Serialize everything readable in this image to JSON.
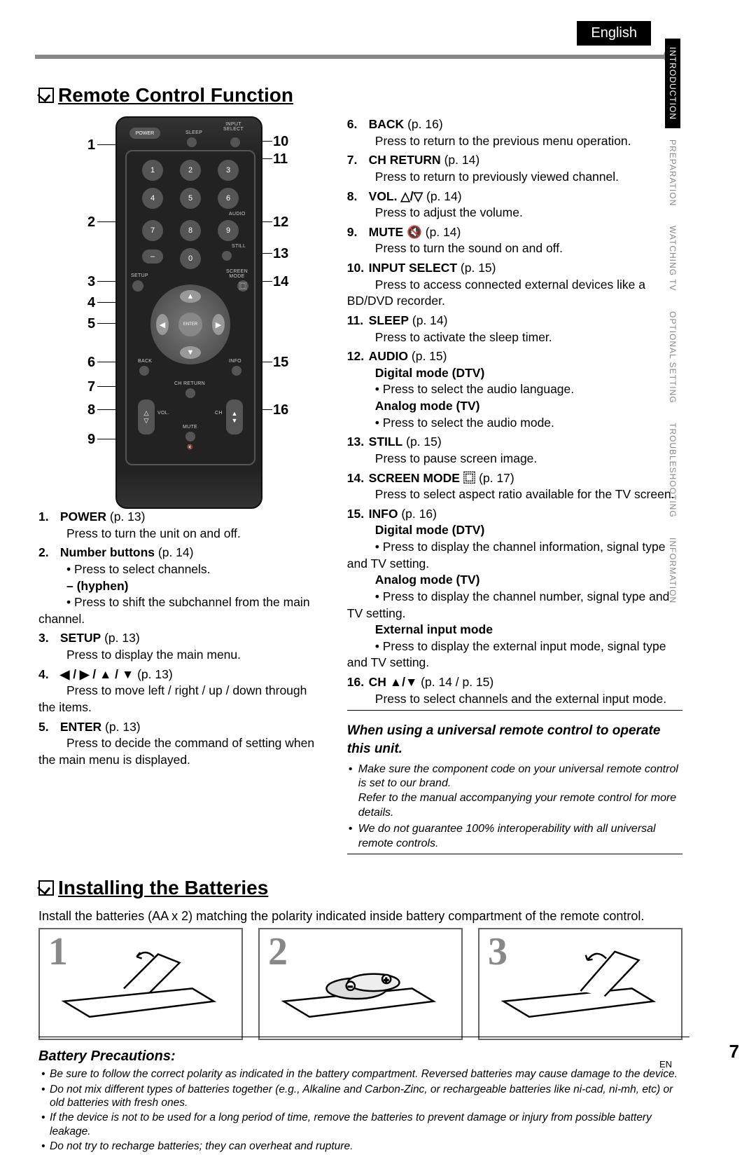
{
  "header": {
    "language": "English"
  },
  "side_tabs": [
    "INTRODUCTION",
    "PREPARATION",
    "WATCHING TV",
    "OPTIONAL SETTING",
    "TROUBLESHOOTING",
    "INFORMATION"
  ],
  "remote": {
    "title": "Remote Control Function",
    "left_list": [
      {
        "n": "1.",
        "b": "POWER",
        "pg": "(p. 13)",
        "desc": "Press to turn the unit on and off."
      },
      {
        "n": "2.",
        "b": "Number buttons",
        "pg": "(p. 14)",
        "desc": "• Press to select channels.",
        "sub": "– (hyphen)",
        "subdesc": "• Press to shift the subchannel from the main channel."
      },
      {
        "n": "3.",
        "b": "SETUP",
        "pg": "(p. 13)",
        "desc": "Press to display the main menu."
      },
      {
        "n": "4.",
        "b": "◀ / ▶ / ▲ / ▼",
        "pg": "(p. 13)",
        "desc": "Press to move left / right / up / down through the items."
      },
      {
        "n": "5.",
        "b": "ENTER",
        "pg": "(p. 13)",
        "desc": "Press to decide the command of setting when the main menu is displayed."
      }
    ],
    "right_list": [
      {
        "n": "6.",
        "b": "BACK",
        "pg": "(p. 16)",
        "desc": "Press to return to the previous menu operation."
      },
      {
        "n": "7.",
        "b": "CH RETURN",
        "pg": "(p. 14)",
        "desc": "Press to return to previously viewed channel."
      },
      {
        "n": "8.",
        "b": "VOL. △/▽",
        "pg": "(p. 14)",
        "desc": "Press to adjust the volume."
      },
      {
        "n": "9.",
        "b": "MUTE 🔇",
        "pg": "(p. 14)",
        "desc": "Press to turn the sound on and off."
      },
      {
        "n": "10.",
        "b": "INPUT SELECT",
        "pg": "(p. 15)",
        "desc": "Press to access connected external devices like a BD/DVD recorder."
      },
      {
        "n": "11.",
        "b": "SLEEP",
        "pg": "(p. 14)",
        "desc": "Press to activate the sleep timer."
      },
      {
        "n": "12.",
        "b": "AUDIO",
        "pg": "(p. 15)",
        "sub1": "Digital mode (DTV)",
        "sd1": "• Press to select the audio language.",
        "sub2": "Analog mode (TV)",
        "sd2": "• Press to select the audio mode."
      },
      {
        "n": "13.",
        "b": "STILL",
        "pg": "(p. 15)",
        "desc": "Press to pause screen image."
      },
      {
        "n": "14.",
        "b": "SCREEN MODE ⿴",
        "pg": "(p. 17)",
        "desc": "Press to select aspect ratio available for the TV screen."
      },
      {
        "n": "15.",
        "b": "INFO",
        "pg": "(p. 16)",
        "sub1": "Digital mode (DTV)",
        "sd1": "• Press to display the channel information, signal type and TV setting.",
        "sub2": "Analog mode (TV)",
        "sd2": "• Press to display the channel number, signal type and TV setting.",
        "sub3": "External input mode",
        "sd3": "• Press to display the external input mode, signal type and TV setting."
      },
      {
        "n": "16.",
        "b": "CH ▲/▼",
        "pg": "(p. 14 / p. 15)",
        "desc": "Press to select channels and the external input mode."
      }
    ],
    "callout": {
      "title": "When using a universal remote control to operate this unit.",
      "items": [
        "Make sure the component code on your universal remote control is set to our brand.\nRefer to the manual accompanying your remote control for more details.",
        "We do not guarantee 100% interoperability with all universal remote controls."
      ]
    }
  },
  "battery": {
    "title": "Installing the Batteries",
    "intro": "Install the batteries (AA x 2) matching the polarity indicated inside battery compartment of the remote control.",
    "steps": [
      "1",
      "2",
      "3"
    ],
    "precautions_title": "Battery Precautions:",
    "precautions": [
      "Be sure to follow the correct polarity as indicated in the battery compartment. Reversed batteries may cause damage to the device.",
      "Do not mix different types of batteries together (e.g., Alkaline and Carbon-Zinc, or rechargeable batteries like ni-cad, ni-mh, etc) or old batteries with fresh ones.",
      "If the device is not to be used for a long period of time, remove the batteries to prevent damage or injury from possible battery leakage.",
      "Do not try to recharge batteries; they can overheat and rupture."
    ]
  },
  "footer": {
    "page": "7",
    "lang": "EN"
  },
  "colors": {
    "accent": "#888",
    "dark": "#000"
  }
}
